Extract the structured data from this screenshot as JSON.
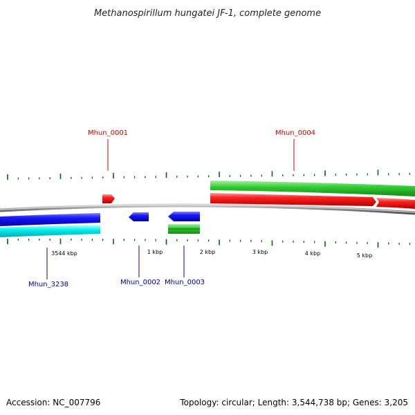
{
  "title": "Methanospirillum hungatei JF-1, complete genome",
  "footer": {
    "accession": "Accession: NC_007796",
    "summary": "Topology: circular; Length: 3,544,738 bp; Genes: 3,205"
  },
  "colors": {
    "forward_cds": "#ff0000",
    "reverse_cds": "#0000ff",
    "forward_gene": "#33cc33",
    "reverse_gene": "#00ffff",
    "tick": "#006600",
    "backbone": "#888888",
    "forward_label": "#cc0000",
    "reverse_label": "#000099"
  },
  "genes": [
    {
      "name": "Mhun_0001",
      "strand": "forward"
    },
    {
      "name": "Mhun_0004",
      "strand": "forward"
    },
    {
      "name": "Mhun_3238",
      "strand": "reverse"
    },
    {
      "name": "Mhun_0002",
      "strand": "reverse"
    },
    {
      "name": "Mhun_0003",
      "strand": "reverse"
    }
  ],
  "ticks": {
    "labels": [
      "3544 kbp",
      "1 kbp",
      "2 kbp",
      "3 kbp",
      "4 kbp",
      "5 kbp"
    ]
  }
}
